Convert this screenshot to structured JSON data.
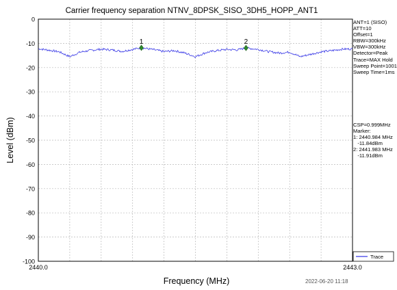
{
  "chart_data": {
    "type": "line",
    "title": "Carrier frequency separation NTNV_8DPSK_SISO_3DH5_HOPP_ANT1",
    "xlabel": "Frequency (MHz)",
    "ylabel": "Level (dBm)",
    "xlim": [
      2440.0,
      2443.0
    ],
    "ylim": [
      -100,
      0
    ],
    "x_ticks": [
      "2440.0",
      "2443.0"
    ],
    "y_ticks": [
      0,
      -10,
      -20,
      -30,
      -40,
      -50,
      -60,
      -70,
      -80,
      -90,
      -100
    ],
    "grid": true,
    "legend_position": "bottom-right",
    "series": [
      {
        "name": "Trace",
        "color": "#3a3ae6",
        "x": [
          2440.0,
          2440.1,
          2440.2,
          2440.3,
          2440.4,
          2440.5,
          2440.6,
          2440.7,
          2440.8,
          2440.9,
          2440.984,
          2441.1,
          2441.2,
          2441.3,
          2441.4,
          2441.5,
          2441.6,
          2441.7,
          2441.8,
          2441.9,
          2441.983,
          2442.1,
          2442.2,
          2442.3,
          2442.4,
          2442.5,
          2442.6,
          2442.7,
          2442.8,
          2442.9,
          2443.0
        ],
        "values": [
          -12.2,
          -12.8,
          -13.5,
          -15.5,
          -13.6,
          -12.9,
          -12.4,
          -12.7,
          -13.3,
          -12.5,
          -11.8,
          -12.6,
          -13.4,
          -13.0,
          -14.0,
          -15.5,
          -13.8,
          -13.0,
          -12.5,
          -12.7,
          -11.9,
          -12.5,
          -13.4,
          -14.0,
          -13.6,
          -15.5,
          -14.5,
          -13.5,
          -13.0,
          -12.4,
          -12.3
        ]
      }
    ],
    "markers": [
      {
        "label": "1",
        "x": 2440.984,
        "y": -11.84
      },
      {
        "label": "2",
        "x": 2441.983,
        "y": -11.91
      }
    ]
  },
  "settings_panel": [
    "ANT=1 (SISO)",
    "ATT=10",
    "Offset=1",
    "RBW=300kHz",
    "VBW=300kHz",
    "Detector=Peak",
    "Trace=MAX Hold",
    "Sweep Point=1001",
    "Sweep Time=1ms"
  ],
  "marker_panel": [
    "CSP=0.999MHz",
    "Marker:",
    "1: 2440.984 MHz",
    "   -11.84dBm",
    "2: 2441.983 MHz",
    "   -11.91dBm"
  ],
  "legend": {
    "label": "Trace"
  },
  "timestamp": "2022-06-20 11:18"
}
